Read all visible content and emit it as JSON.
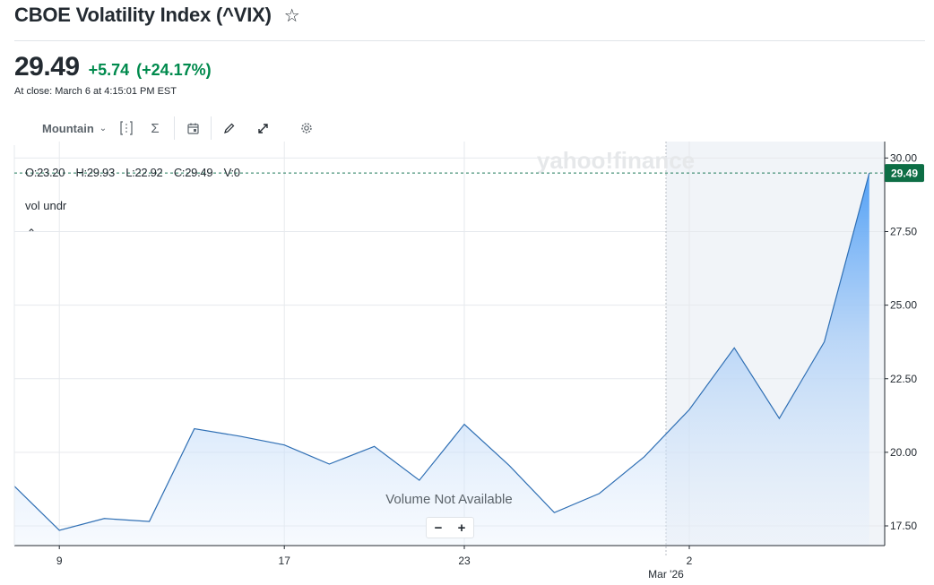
{
  "header": {
    "title": "CBOE Volatility Index (^VIX)",
    "price": "29.49",
    "change": "+5.74",
    "change_pct": "(+24.17%)",
    "close_note": "At close: March 6 at 4:15:01 PM EST"
  },
  "toolbar": {
    "chart_type": "Mountain"
  },
  "colors": {
    "line": "#2f6fb4",
    "positive": "#008a4d",
    "last_price_tag": "#0d6e45"
  },
  "chart_data": {
    "type": "area",
    "x": [
      "Feb 6",
      "Feb 9",
      "Feb 10",
      "Feb 11",
      "Feb 12",
      "Feb 13",
      "Feb 17",
      "Feb 18",
      "Feb 19",
      "Feb 20",
      "Feb 23",
      "Feb 24",
      "Feb 25",
      "Feb 26",
      "Feb 27",
      "Mar 2",
      "Mar 3",
      "Mar 4",
      "Mar 5",
      "Mar 6"
    ],
    "values": [
      18.85,
      17.35,
      17.75,
      17.65,
      20.8,
      20.55,
      20.25,
      19.6,
      20.2,
      19.05,
      20.95,
      19.55,
      17.95,
      18.6,
      19.85,
      21.45,
      23.55,
      21.15,
      23.75,
      29.49
    ],
    "ylim": [
      17.0,
      30.4
    ],
    "y_ticks": [
      "30.00",
      "27.50",
      "25.00",
      "22.50",
      "20.00",
      "17.50"
    ],
    "x_ticks": [
      "9",
      "17",
      "23",
      "2"
    ],
    "x_tick_dates": [
      "Feb 9",
      "Feb 17",
      "Feb 23",
      "Mar 2"
    ],
    "month_label": "Mar '26",
    "last_price": "29.49",
    "ohlc": {
      "open": "O:23.20",
      "high": "H:29.93",
      "low": "L:22.92",
      "close": "C:29.49",
      "volume": "V:0"
    },
    "indicator_label": "vol undr",
    "volume_note": "Volume Not Available",
    "watermark": "yahoo!finance",
    "grid": true,
    "legend": "none"
  },
  "zoom": {
    "minus": "−",
    "plus": "+"
  }
}
